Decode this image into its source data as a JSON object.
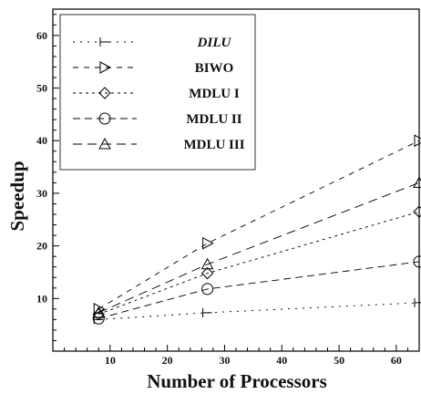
{
  "chart_data": {
    "type": "line",
    "title": "",
    "xlabel": "Number of Processors",
    "ylabel": "Speedup",
    "xlim": [
      0,
      64
    ],
    "ylim": [
      0,
      65
    ],
    "x_ticks": [
      10,
      20,
      30,
      40,
      50,
      60
    ],
    "y_ticks": [
      10,
      20,
      30,
      40,
      50,
      60
    ],
    "grid": false,
    "legend_position": "top-left",
    "series": [
      {
        "name": "DILU",
        "marker": "tee",
        "x": [
          8,
          27,
          64
        ],
        "y": [
          6.0,
          7.3,
          9.2
        ]
      },
      {
        "name": "BIWO",
        "marker": "triangle-right",
        "x": [
          8,
          27,
          64
        ],
        "y": [
          8.0,
          20.5,
          40.0
        ]
      },
      {
        "name": "MDLU I",
        "marker": "diamond",
        "x": [
          8,
          27,
          64
        ],
        "y": [
          7.0,
          14.8,
          26.5
        ]
      },
      {
        "name": "MDLU II",
        "marker": "circle",
        "x": [
          8,
          27,
          64
        ],
        "y": [
          6.2,
          11.8,
          17.0
        ]
      },
      {
        "name": "MDLU III",
        "marker": "triangle-up",
        "x": [
          8,
          27,
          64
        ],
        "y": [
          7.3,
          16.5,
          32.0
        ]
      }
    ]
  }
}
